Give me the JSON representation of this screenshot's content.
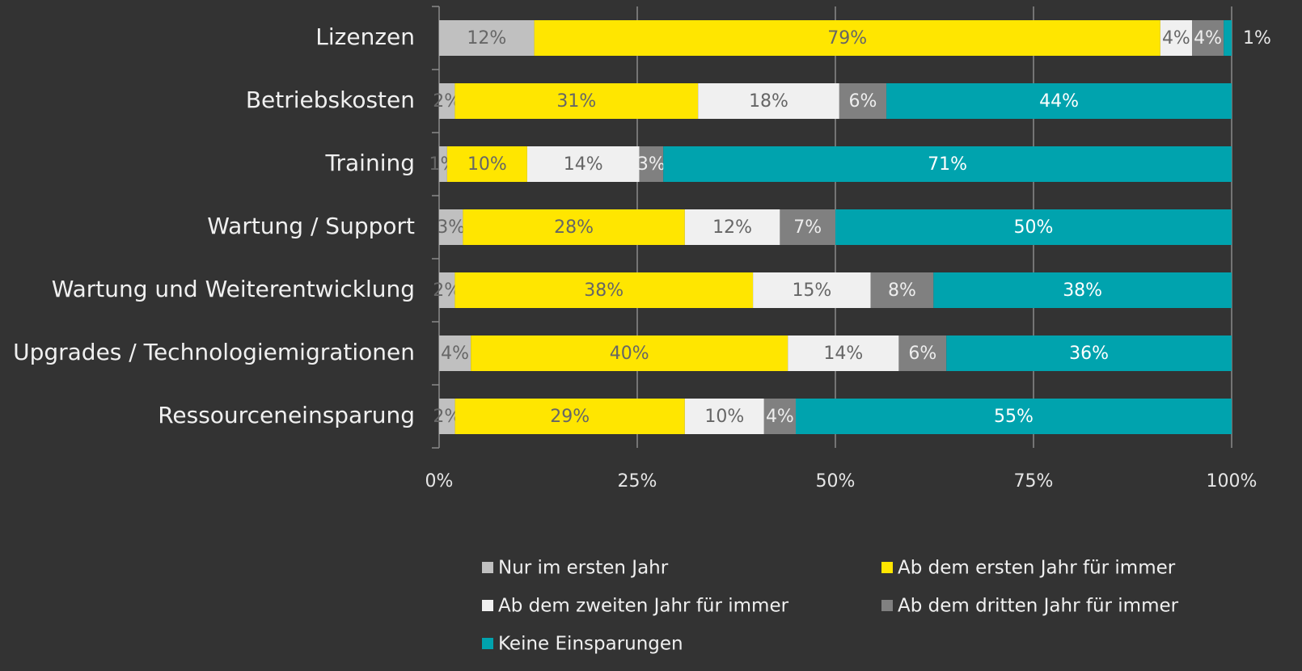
{
  "chart_data": {
    "type": "bar",
    "orientation": "horizontal",
    "stacked": "percent",
    "categories": [
      "Lizenzen",
      "Betriebskosten",
      "Training",
      "Wartung / Support",
      "Wartung und Weiterentwicklung",
      "Upgrades / Technologiemigrationen",
      "Ressourceneinsparung"
    ],
    "series": [
      {
        "name": "Nur im ersten Jahr",
        "color": "#c0c0c0",
        "label_color": "#666666",
        "values": [
          12,
          2,
          1,
          3,
          2,
          4,
          2
        ],
        "value_labels": [
          "12%",
          "2%",
          "1%",
          "3%",
          "2%",
          "4%",
          "2%"
        ]
      },
      {
        "name": "Ab dem ersten Jahr für immer",
        "color": "#ffe600",
        "label_color": "#666666",
        "values": [
          79,
          31,
          10,
          28,
          38,
          40,
          29
        ],
        "value_labels": [
          "79%",
          "31%",
          "10%",
          "28%",
          "38%",
          "40%",
          "29%"
        ]
      },
      {
        "name": "Ab dem zweiten Jahr für immer",
        "color": "#f0f0f0",
        "label_color": "#666666",
        "values": [
          4,
          18,
          14,
          12,
          15,
          14,
          10
        ],
        "value_labels": [
          "4%",
          "18%",
          "14%",
          "12%",
          "15%",
          "14%",
          "10%"
        ]
      },
      {
        "name": "Ab dem dritten Jahr für immer",
        "color": "#808080",
        "label_color": "#eeeeee",
        "values": [
          4,
          6,
          3,
          7,
          8,
          6,
          4
        ],
        "value_labels": [
          "4%",
          "6%",
          "3%",
          "7%",
          "8%",
          "6%",
          "4%"
        ]
      },
      {
        "name": "Keine Einsparungen",
        "color": "#00a3ae",
        "label_color": "#ffffff",
        "values": [
          1,
          44,
          71,
          50,
          38,
          36,
          55
        ],
        "value_labels": [
          "1%",
          "44%",
          "71%",
          "50%",
          "38%",
          "36%",
          "55%"
        ]
      }
    ],
    "xlim": [
      0,
      100
    ],
    "xticks": [
      {
        "value": 0,
        "label": "0%"
      },
      {
        "value": 25,
        "label": "25%"
      },
      {
        "value": 50,
        "label": "50%"
      },
      {
        "value": 75,
        "label": "75%"
      },
      {
        "value": 100,
        "label": "100%"
      }
    ],
    "grid": true,
    "legend": "bottom"
  }
}
